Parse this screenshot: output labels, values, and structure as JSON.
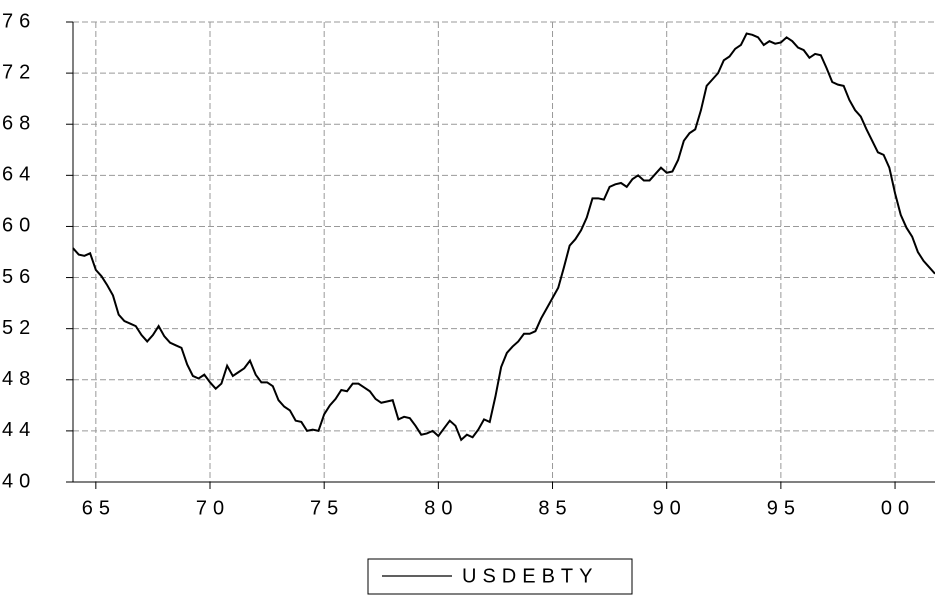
{
  "chart_data": {
    "type": "line",
    "x": [
      1964,
      1964.25,
      1964.5,
      1964.75,
      1965,
      1965.25,
      1965.5,
      1965.75,
      1966,
      1966.25,
      1966.5,
      1966.75,
      1967,
      1967.25,
      1967.5,
      1967.75,
      1968,
      1968.25,
      1968.5,
      1968.75,
      1969,
      1969.25,
      1969.5,
      1969.75,
      1970,
      1970.25,
      1970.5,
      1970.75,
      1971,
      1971.25,
      1971.5,
      1971.75,
      1972,
      1972.25,
      1972.5,
      1972.75,
      1973,
      1973.25,
      1973.5,
      1973.75,
      1974,
      1974.25,
      1974.5,
      1974.75,
      1975,
      1975.25,
      1975.5,
      1975.75,
      1976,
      1976.25,
      1976.5,
      1976.75,
      1977,
      1977.25,
      1977.5,
      1977.75,
      1978,
      1978.25,
      1978.5,
      1978.75,
      1979,
      1979.25,
      1979.5,
      1979.75,
      1980,
      1980.25,
      1980.5,
      1980.75,
      1981,
      1981.25,
      1981.5,
      1981.75,
      1982,
      1982.25,
      1982.5,
      1982.75,
      1983,
      1983.25,
      1983.5,
      1983.75,
      1984,
      1984.25,
      1984.5,
      1984.75,
      1985,
      1985.25,
      1985.5,
      1985.75,
      1986,
      1986.25,
      1986.5,
      1986.75,
      1987,
      1987.25,
      1987.5,
      1987.75,
      1988,
      1988.25,
      1988.5,
      1988.75,
      1989,
      1989.25,
      1989.5,
      1989.75,
      1990,
      1990.25,
      1990.5,
      1990.75,
      1991,
      1991.25,
      1991.5,
      1991.75,
      1992,
      1992.25,
      1992.5,
      1992.75,
      1993,
      1993.25,
      1993.5,
      1993.75,
      1994,
      1994.25,
      1994.5,
      1994.75,
      1995,
      1995.25,
      1995.5,
      1995.75,
      1996,
      1996.25,
      1996.5,
      1996.75,
      1997,
      1997.25,
      1997.5,
      1997.75,
      1998,
      1998.25,
      1998.5,
      1998.75,
      1999,
      1999.25,
      1999.5,
      1999.75,
      2000,
      2000.25,
      2000.5,
      2000.75,
      2001,
      2001.25,
      2001.5,
      2001.75
    ],
    "series": [
      {
        "name": "USDEBTY",
        "color": "#000000",
        "values": [
          58.3,
          57.8,
          57.7,
          57.9,
          56.6,
          56.1,
          55.4,
          54.6,
          53.1,
          52.6,
          52.4,
          52.2,
          51.5,
          51.0,
          51.5,
          52.2,
          51.4,
          50.9,
          50.7,
          50.5,
          49.2,
          48.3,
          48.1,
          48.4,
          47.8,
          47.3,
          47.7,
          49.1,
          48.3,
          48.6,
          48.9,
          49.5,
          48.4,
          47.8,
          47.8,
          47.5,
          46.4,
          45.9,
          45.6,
          44.8,
          44.7,
          44.0,
          44.1,
          44.0,
          45.3,
          46.0,
          46.5,
          47.2,
          47.1,
          47.7,
          47.7,
          47.4,
          47.1,
          46.5,
          46.2,
          46.3,
          46.4,
          44.9,
          45.1,
          45.0,
          44.4,
          43.7,
          43.8,
          44.0,
          43.6,
          44.2,
          44.8,
          44.4,
          43.3,
          43.7,
          43.5,
          44.1,
          44.9,
          44.7,
          46.7,
          49.0,
          50.1,
          50.6,
          51.0,
          51.6,
          51.6,
          51.8,
          52.8,
          53.6,
          54.4,
          55.2,
          56.8,
          58.5,
          59.0,
          59.7,
          60.7,
          62.2,
          62.2,
          62.1,
          63.1,
          63.3,
          63.4,
          63.1,
          63.7,
          64.0,
          63.6,
          63.6,
          64.1,
          64.6,
          64.2,
          64.3,
          65.2,
          66.7,
          67.3,
          67.6,
          69.1,
          71.0,
          71.5,
          72.0,
          73.0,
          73.3,
          73.9,
          74.2,
          75.1,
          75.0,
          74.8,
          74.2,
          74.5,
          74.3,
          74.4,
          74.8,
          74.5,
          74.0,
          73.8,
          73.2,
          73.5,
          73.4,
          72.4,
          71.3,
          71.1,
          71.0,
          69.9,
          69.1,
          68.6,
          67.6,
          66.7,
          65.8,
          65.6,
          64.6,
          62.6,
          60.9,
          59.9,
          59.2,
          58.0,
          57.3,
          56.8,
          56.3
        ]
      }
    ],
    "xlim": [
      1964,
      2001.75
    ],
    "xticks": [
      {
        "value": 1965,
        "label": "65"
      },
      {
        "value": 1970,
        "label": "70"
      },
      {
        "value": 1975,
        "label": "75"
      },
      {
        "value": 1980,
        "label": "80"
      },
      {
        "value": 1985,
        "label": "85"
      },
      {
        "value": 1990,
        "label": "90"
      },
      {
        "value": 1995,
        "label": "95"
      },
      {
        "value": 2000,
        "label": "00"
      }
    ],
    "ylim": [
      40,
      76
    ],
    "yticks": [
      40,
      44,
      48,
      52,
      56,
      60,
      64,
      68,
      72,
      76
    ],
    "grid": true
  }
}
